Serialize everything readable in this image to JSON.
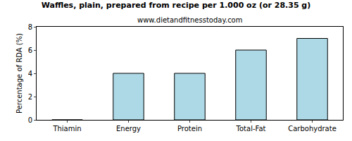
{
  "chart_data": {
    "type": "bar",
    "title": "Waffles, plain, prepared from recipe per 1.000 oz (or 28.35 g)",
    "subtitle": "www.dietandfitnesstoday.com",
    "y_label": "Percentage of RDA (%)",
    "categories": [
      "Thiamin",
      "Energy",
      "Protein",
      "Total-Fat",
      "Carbohydrate"
    ],
    "values": [
      0,
      4,
      4,
      6,
      7
    ],
    "color": "#add8e6",
    "ylim": [
      0,
      8
    ],
    "yticks": [
      0,
      2,
      4,
      6,
      8
    ],
    "grid": false
  }
}
